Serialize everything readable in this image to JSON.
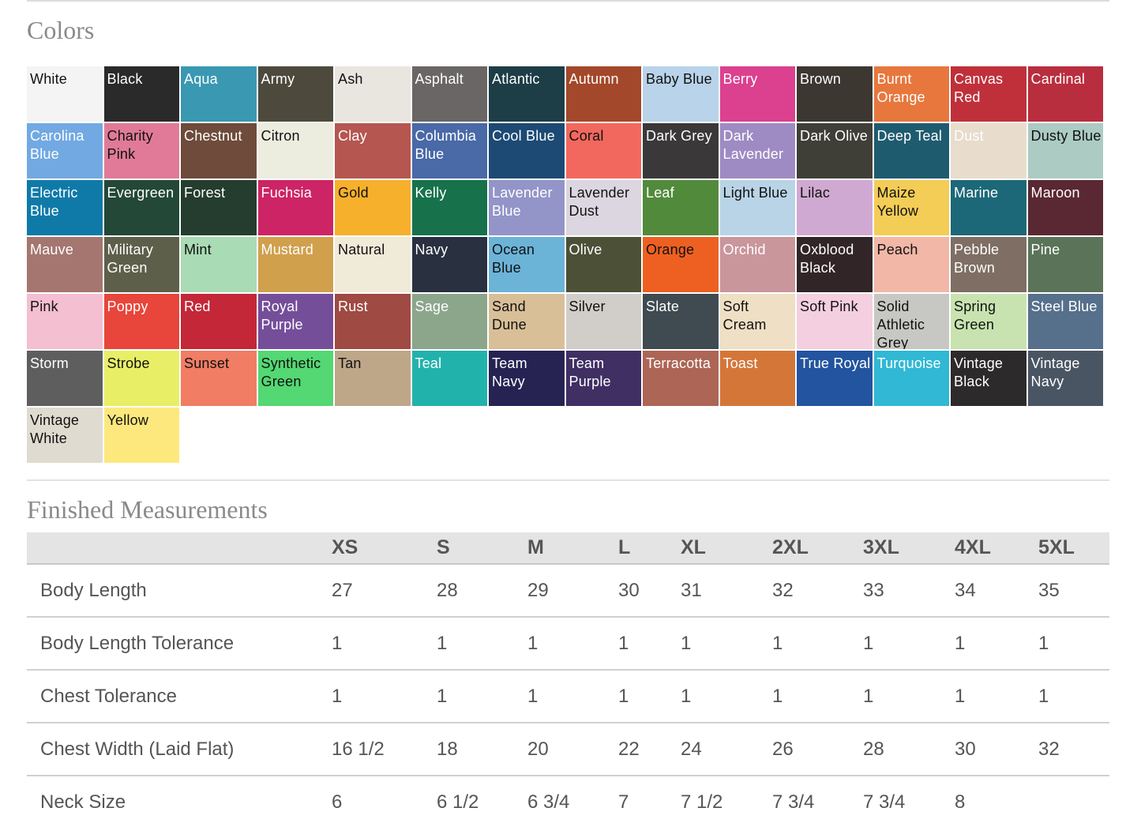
{
  "colors_section": {
    "title": "Colors",
    "swatches": [
      {
        "name": "White",
        "color": "#f4f4f4",
        "text": "#111111"
      },
      {
        "name": "Black",
        "color": "#2b2a2b",
        "text": "#ffffff"
      },
      {
        "name": "Aqua",
        "color": "#3a98b2",
        "text": "#ffffff"
      },
      {
        "name": "Army",
        "color": "#4d4a3d",
        "text": "#ffffff"
      },
      {
        "name": "Ash",
        "color": "#e9e6e0",
        "text": "#111111"
      },
      {
        "name": "Asphalt",
        "color": "#6a6666",
        "text": "#ffffff"
      },
      {
        "name": "Atlantic",
        "color": "#1d3e46",
        "text": "#ffffff"
      },
      {
        "name": "Autumn",
        "color": "#a3482a",
        "text": "#ffffff"
      },
      {
        "name": "Baby Blue",
        "color": "#b8d3ea",
        "text": "#111111"
      },
      {
        "name": "Berry",
        "color": "#db418f",
        "text": "#ffffff"
      },
      {
        "name": "Brown",
        "color": "#3d3731",
        "text": "#ffffff"
      },
      {
        "name": "Burnt Orange",
        "color": "#e7773d",
        "text": "#ffffff"
      },
      {
        "name": "Canvas Red",
        "color": "#c0303a",
        "text": "#ffffff"
      },
      {
        "name": "Cardinal",
        "color": "#b92e3e",
        "text": "#ffffff"
      },
      {
        "name": "Carolina Blue",
        "color": "#72a9e2",
        "text": "#ffffff"
      },
      {
        "name": "Charity Pink",
        "color": "#e07a98",
        "text": "#111111"
      },
      {
        "name": "Chestnut",
        "color": "#6e4b3a",
        "text": "#ffffff"
      },
      {
        "name": "Citron",
        "color": "#ececdf",
        "text": "#111111"
      },
      {
        "name": "Clay",
        "color": "#b55650",
        "text": "#ffffff"
      },
      {
        "name": "Columbia Blue",
        "color": "#4969a7",
        "text": "#ffffff"
      },
      {
        "name": "Cool Blue",
        "color": "#1c4a74",
        "text": "#ffffff"
      },
      {
        "name": "Coral",
        "color": "#f2685e",
        "text": "#111111"
      },
      {
        "name": "Dark Grey",
        "color": "#3a3839",
        "text": "#ffffff"
      },
      {
        "name": "Dark Lavender",
        "color": "#9e8bc3",
        "text": "#ffffff"
      },
      {
        "name": "Dark Olive",
        "color": "#3f3f37",
        "text": "#ffffff"
      },
      {
        "name": "Deep Teal",
        "color": "#1f5b6f",
        "text": "#ffffff"
      },
      {
        "name": "Dust",
        "color": "#e8dccd",
        "text": "#ffffff"
      },
      {
        "name": "Dusty Blue",
        "color": "#abcbc3",
        "text": "#111111"
      },
      {
        "name": "Electric Blue",
        "color": "#0f7aa8",
        "text": "#ffffff"
      },
      {
        "name": "Evergreen",
        "color": "#234838",
        "text": "#ffffff"
      },
      {
        "name": "Forest",
        "color": "#243d2e",
        "text": "#ffffff"
      },
      {
        "name": "Fuchsia",
        "color": "#cd2465",
        "text": "#ffffff"
      },
      {
        "name": "Gold",
        "color": "#f6b02c",
        "text": "#111111"
      },
      {
        "name": "Kelly",
        "color": "#17724b",
        "text": "#ffffff"
      },
      {
        "name": "Lavender Blue",
        "color": "#9394c8",
        "text": "#ffffff"
      },
      {
        "name": "Lavender Dust",
        "color": "#dcd6e0",
        "text": "#111111"
      },
      {
        "name": "Leaf",
        "color": "#528a3c",
        "text": "#ffffff"
      },
      {
        "name": "Light Blue",
        "color": "#b9d4e6",
        "text": "#111111"
      },
      {
        "name": "Lilac",
        "color": "#d0a9d2",
        "text": "#111111"
      },
      {
        "name": "Maize Yellow",
        "color": "#f4cd57",
        "text": "#111111"
      },
      {
        "name": "Marine",
        "color": "#1c6878",
        "text": "#ffffff"
      },
      {
        "name": "Maroon",
        "color": "#5a2832",
        "text": "#ffffff"
      },
      {
        "name": "Mauve",
        "color": "#a57670",
        "text": "#ffffff"
      },
      {
        "name": "Military Green",
        "color": "#5e5f4a",
        "text": "#ffffff"
      },
      {
        "name": "Mint",
        "color": "#a9dbb4",
        "text": "#111111"
      },
      {
        "name": "Mustard",
        "color": "#d0a04d",
        "text": "#ffffff"
      },
      {
        "name": "Natural",
        "color": "#f0ead8",
        "text": "#111111"
      },
      {
        "name": "Navy",
        "color": "#293140",
        "text": "#ffffff"
      },
      {
        "name": "Ocean Blue",
        "color": "#6cb3d8",
        "text": "#111111"
      },
      {
        "name": "Olive",
        "color": "#4c5036",
        "text": "#ffffff"
      },
      {
        "name": "Orange",
        "color": "#ee6021",
        "text": "#111111"
      },
      {
        "name": "Orchid",
        "color": "#c9969c",
        "text": "#ffffff"
      },
      {
        "name": "Oxblood Black",
        "color": "#322528",
        "text": "#ffffff"
      },
      {
        "name": "Peach",
        "color": "#f2b7a7",
        "text": "#111111"
      },
      {
        "name": "Pebble Brown",
        "color": "#7e6e64",
        "text": "#ffffff"
      },
      {
        "name": "Pine",
        "color": "#5b7459",
        "text": "#ffffff"
      },
      {
        "name": "Pink",
        "color": "#f4bfd0",
        "text": "#111111"
      },
      {
        "name": "Poppy",
        "color": "#e8453b",
        "text": "#ffffff"
      },
      {
        "name": "Red",
        "color": "#c42737",
        "text": "#ffffff"
      },
      {
        "name": "Royal Purple",
        "color": "#754e9a",
        "text": "#ffffff"
      },
      {
        "name": "Rust",
        "color": "#9f4a42",
        "text": "#ffffff"
      },
      {
        "name": "Sage",
        "color": "#8ca68b",
        "text": "#ffffff"
      },
      {
        "name": "Sand Dune",
        "color": "#d8bf98",
        "text": "#111111"
      },
      {
        "name": "Silver",
        "color": "#d1cdc8",
        "text": "#111111"
      },
      {
        "name": "Slate",
        "color": "#3f4b50",
        "text": "#ffffff"
      },
      {
        "name": "Soft Cream",
        "color": "#efdfc4",
        "text": "#111111"
      },
      {
        "name": "Soft Pink",
        "color": "#f4cfe0",
        "text": "#111111"
      },
      {
        "name": "Solid Athletic Grey",
        "color": "#c7c7c4",
        "text": "#111111"
      },
      {
        "name": "Spring Green",
        "color": "#c8e3b0",
        "text": "#111111"
      },
      {
        "name": "Steel Blue",
        "color": "#56708c",
        "text": "#ffffff"
      },
      {
        "name": "Storm",
        "color": "#5f5e5e",
        "text": "#ffffff"
      },
      {
        "name": "Strobe",
        "color": "#e8ef66",
        "text": "#111111"
      },
      {
        "name": "Sunset",
        "color": "#f07d64",
        "text": "#111111"
      },
      {
        "name": "Synthetic Green",
        "color": "#53d873",
        "text": "#111111"
      },
      {
        "name": "Tan",
        "color": "#bea689",
        "text": "#111111"
      },
      {
        "name": "Teal",
        "color": "#22b2ac",
        "text": "#ffffff"
      },
      {
        "name": "Team Navy",
        "color": "#262353",
        "text": "#ffffff"
      },
      {
        "name": "Team Purple",
        "color": "#3f2f63",
        "text": "#ffffff"
      },
      {
        "name": "Terracotta",
        "color": "#ad6555",
        "text": "#ffffff"
      },
      {
        "name": "Toast",
        "color": "#d57639",
        "text": "#ffffff"
      },
      {
        "name": "True Royal",
        "color": "#22549f",
        "text": "#ffffff"
      },
      {
        "name": "Turquoise",
        "color": "#30b8d4",
        "text": "#ffffff"
      },
      {
        "name": "Vintage Black",
        "color": "#2c2a2a",
        "text": "#ffffff"
      },
      {
        "name": "Vintage Navy",
        "color": "#4a5564",
        "text": "#ffffff"
      },
      {
        "name": "Vintage White",
        "color": "#e0dbd0",
        "text": "#111111"
      },
      {
        "name": "Yellow",
        "color": "#fde87e",
        "text": "#111111"
      }
    ]
  },
  "measurements_section": {
    "title": "Finished Measurements",
    "header_blank": "",
    "sizes": [
      "XS",
      "S",
      "M",
      "L",
      "XL",
      "2XL",
      "3XL",
      "4XL",
      "5XL"
    ],
    "rows": [
      {
        "label": "Body Length",
        "values": [
          "27",
          "28",
          "29",
          "30",
          "31",
          "32",
          "33",
          "34",
          "35"
        ]
      },
      {
        "label": "Body Length Tolerance",
        "values": [
          "1",
          "1",
          "1",
          "1",
          "1",
          "1",
          "1",
          "1",
          "1"
        ]
      },
      {
        "label": "Chest Tolerance",
        "values": [
          "1",
          "1",
          "1",
          "1",
          "1",
          "1",
          "1",
          "1",
          "1"
        ]
      },
      {
        "label": "Chest Width (Laid Flat)",
        "values": [
          "16 1/2",
          "18",
          "20",
          "22",
          "24",
          "26",
          "28",
          "30",
          "32"
        ]
      },
      {
        "label": "Neck Size",
        "values": [
          "6",
          "6 1/2",
          "6 3/4",
          "7",
          "7 1/2",
          "7 3/4",
          "7 3/4",
          "8",
          ""
        ]
      }
    ]
  }
}
